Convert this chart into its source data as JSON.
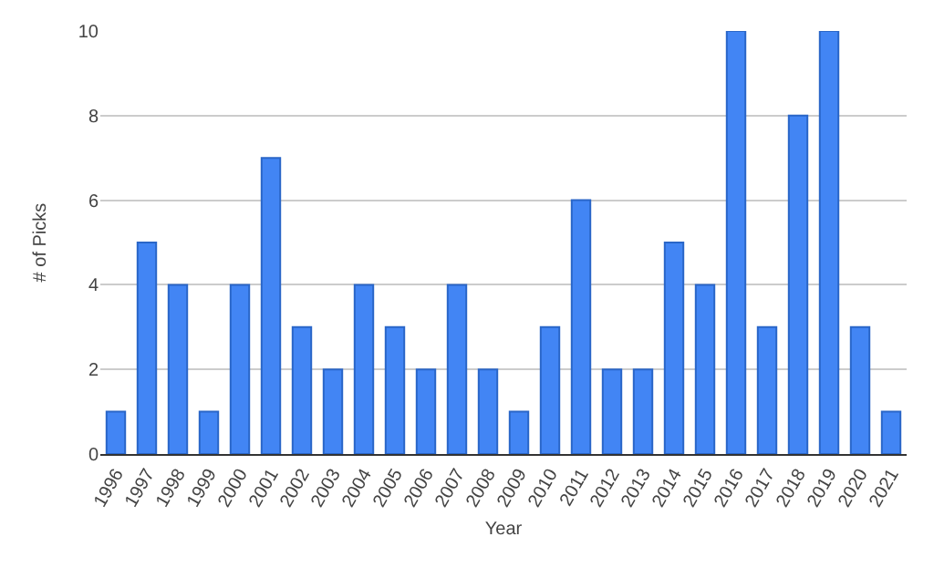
{
  "chart_data": {
    "type": "bar",
    "xlabel": "Year",
    "ylabel": "# of Picks",
    "categories": [
      "1996",
      "1997",
      "1998",
      "1999",
      "2000",
      "2001",
      "2002",
      "2003",
      "2004",
      "2005",
      "2006",
      "2007",
      "2008",
      "2009",
      "2010",
      "2011",
      "2012",
      "2013",
      "2014",
      "2015",
      "2016",
      "2017",
      "2018",
      "2019",
      "2020",
      "2021"
    ],
    "values": [
      1,
      5,
      4,
      1,
      4,
      7,
      3,
      2,
      4,
      3,
      2,
      4,
      2,
      1,
      3,
      6,
      2,
      2,
      5,
      4,
      10,
      3,
      8,
      10,
      3,
      1
    ],
    "color": "#4285f4",
    "ylim": [
      0,
      10
    ],
    "yticks": [
      0,
      2,
      4,
      6,
      8,
      10
    ],
    "grid": "y"
  }
}
